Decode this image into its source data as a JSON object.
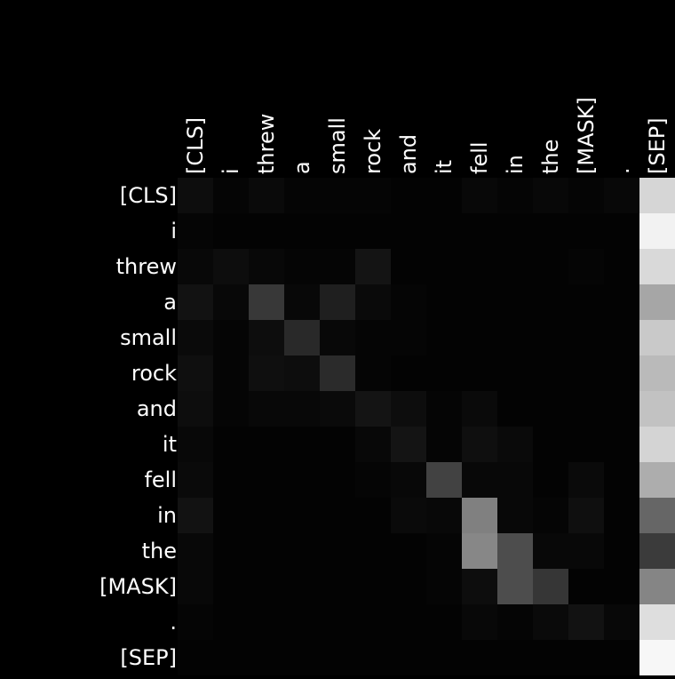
{
  "chart_data": {
    "type": "heatmap",
    "title": "",
    "xlabel": "",
    "ylabel": "",
    "x_tokens": [
      "[CLS]",
      "i",
      "threw",
      "a",
      "small",
      "rock",
      "and",
      "it",
      "fell",
      "in",
      "the",
      "[MASK]",
      ".",
      "[SEP]"
    ],
    "y_tokens": [
      "[CLS]",
      "i",
      "threw",
      "a",
      "small",
      "rock",
      "and",
      "it",
      "fell",
      "in",
      "the",
      "[MASK]",
      ".",
      "[SEP]"
    ],
    "value_range": [
      0,
      1
    ],
    "colormap": "black-to-white grayscale",
    "grid": false,
    "legend": "none",
    "values": [
      [
        0.05,
        0.02,
        0.04,
        0.02,
        0.02,
        0.02,
        0.01,
        0.01,
        0.03,
        0.02,
        0.03,
        0.02,
        0.03,
        0.84
      ],
      [
        0.02,
        0.01,
        0.01,
        0.01,
        0.01,
        0.01,
        0.01,
        0.01,
        0.01,
        0.01,
        0.01,
        0.01,
        0.01,
        0.95
      ],
      [
        0.03,
        0.05,
        0.03,
        0.02,
        0.02,
        0.08,
        0.01,
        0.01,
        0.01,
        0.01,
        0.01,
        0.02,
        0.01,
        0.85
      ],
      [
        0.07,
        0.03,
        0.22,
        0.03,
        0.12,
        0.04,
        0.02,
        0.01,
        0.01,
        0.01,
        0.01,
        0.01,
        0.01,
        0.65
      ],
      [
        0.04,
        0.02,
        0.05,
        0.16,
        0.03,
        0.02,
        0.02,
        0.01,
        0.01,
        0.01,
        0.01,
        0.01,
        0.01,
        0.79
      ],
      [
        0.06,
        0.02,
        0.06,
        0.05,
        0.17,
        0.02,
        0.01,
        0.01,
        0.01,
        0.01,
        0.01,
        0.01,
        0.01,
        0.73
      ],
      [
        0.05,
        0.02,
        0.03,
        0.03,
        0.04,
        0.08,
        0.05,
        0.02,
        0.04,
        0.01,
        0.01,
        0.01,
        0.01,
        0.76
      ],
      [
        0.03,
        0.01,
        0.01,
        0.01,
        0.01,
        0.03,
        0.08,
        0.02,
        0.06,
        0.04,
        0.01,
        0.01,
        0.01,
        0.83
      ],
      [
        0.04,
        0.01,
        0.01,
        0.01,
        0.01,
        0.02,
        0.03,
        0.26,
        0.03,
        0.03,
        0.01,
        0.04,
        0.01,
        0.68
      ],
      [
        0.07,
        0.01,
        0.01,
        0.01,
        0.01,
        0.01,
        0.04,
        0.03,
        0.5,
        0.03,
        0.02,
        0.06,
        0.01,
        0.4
      ],
      [
        0.03,
        0.01,
        0.01,
        0.01,
        0.01,
        0.01,
        0.01,
        0.02,
        0.53,
        0.3,
        0.03,
        0.03,
        0.01,
        0.23
      ],
      [
        0.03,
        0.01,
        0.01,
        0.01,
        0.01,
        0.01,
        0.01,
        0.02,
        0.05,
        0.3,
        0.21,
        0.01,
        0.01,
        0.52
      ],
      [
        0.02,
        0.01,
        0.01,
        0.01,
        0.01,
        0.01,
        0.01,
        0.01,
        0.03,
        0.02,
        0.04,
        0.07,
        0.03,
        0.87
      ],
      [
        0.01,
        0.01,
        0.01,
        0.01,
        0.01,
        0.01,
        0.01,
        0.01,
        0.01,
        0.01,
        0.01,
        0.01,
        0.01,
        0.97
      ]
    ]
  }
}
